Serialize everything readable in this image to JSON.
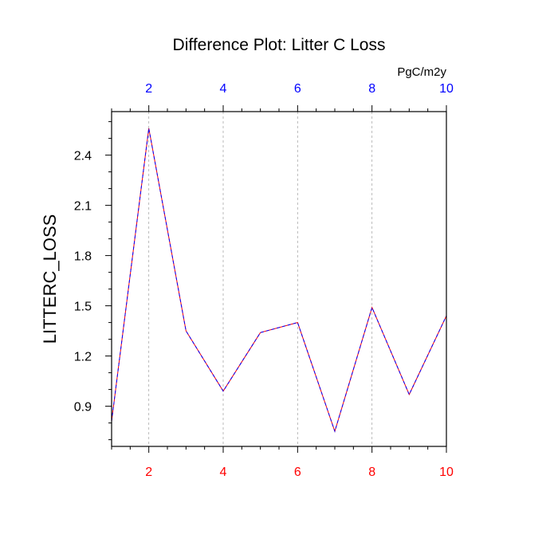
{
  "colors": {
    "top_axis": "#0000ff",
    "bottom_axis": "#ff0000",
    "series_line_1": "#ff0000",
    "series_line_2": "#0000ff",
    "grid": "#aaaaaa",
    "frame": "#000000"
  },
  "chart_data": {
    "type": "line",
    "title": "Difference Plot: Litter C Loss",
    "units": "PgC/m2y",
    "ylabel": "LITTERC_LOSS",
    "xlabel": "",
    "xlim": [
      1,
      10
    ],
    "ylim": [
      0.66,
      2.66
    ],
    "x_ticks": [
      2,
      4,
      6,
      8,
      10
    ],
    "x_tick_labels": [
      "2",
      "4",
      "6",
      "8",
      "10"
    ],
    "y_ticks": [
      0.9,
      1.2,
      1.5,
      1.8,
      2.1,
      2.4
    ],
    "y_tick_labels": [
      "0.9",
      "1.2",
      "1.5",
      "1.8",
      "2.1",
      "2.4"
    ],
    "grid": "vertical dashed at major x ticks",
    "x": [
      1,
      2,
      3,
      4,
      5,
      6,
      7,
      8,
      9,
      10
    ],
    "series": [
      {
        "values": [
          0.81,
          2.56,
          1.35,
          0.99,
          1.34,
          1.4,
          0.75,
          1.49,
          0.97,
          1.44
        ]
      },
      {
        "values": [
          0.81,
          2.56,
          1.35,
          0.99,
          1.34,
          1.4,
          0.75,
          1.49,
          0.97,
          1.44
        ]
      }
    ]
  }
}
